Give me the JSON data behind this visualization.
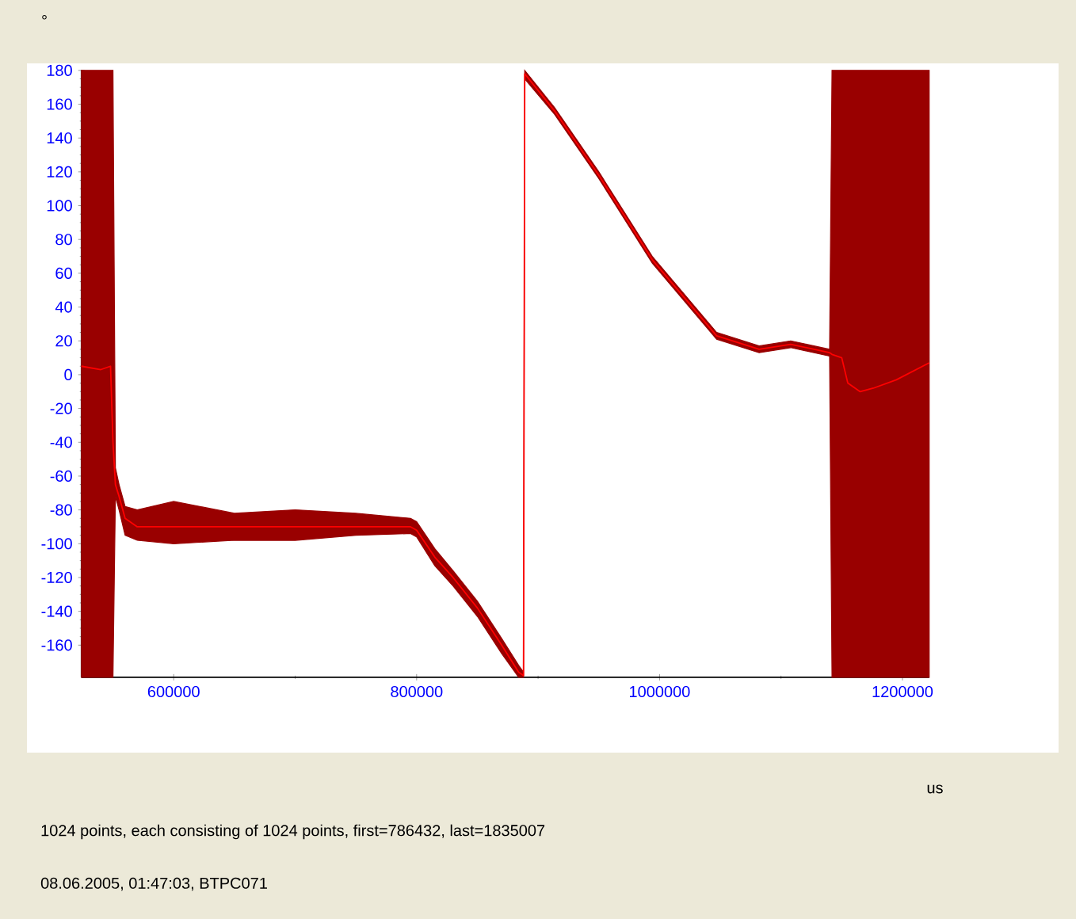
{
  "chart_data": {
    "type": "line",
    "ylabel": "°",
    "annotations": [
      "us",
      "1024 points, each consisting of 1024 points, first=786432, last=1835007",
      "08.06.2005, 01:47:03, BTPC071"
    ],
    "xlim": [
      524000,
      1222000
    ],
    "ylim": [
      -179,
      180
    ],
    "xticks": [
      600000,
      800000,
      1000000,
      1200000
    ],
    "yticks": [
      -160,
      -140,
      -120,
      -100,
      -80,
      -60,
      -40,
      -20,
      0,
      20,
      40,
      60,
      80,
      100,
      120,
      140,
      160,
      180
    ],
    "series": [
      {
        "color": "#ff0000",
        "x": [
          524000,
          540000,
          548000,
          550000,
          552000,
          555000,
          560000,
          570000,
          600000,
          650000,
          700000,
          750000,
          795000,
          800000,
          815000,
          830000,
          850000,
          870000,
          884000,
          888000,
          889000,
          913600,
          950000,
          994000,
          1047000,
          1082000,
          1108000,
          1140000,
          1142000,
          1150000,
          1155000,
          1165000,
          1176000,
          1195000,
          1222000
        ],
        "values": [
          5,
          3,
          5,
          -40,
          -65,
          -72,
          -85,
          -90,
          -90,
          -90,
          -90,
          -90,
          -90,
          -92,
          -108,
          -120,
          -138,
          -160,
          -176,
          -178,
          178,
          156,
          118,
          68,
          23,
          15,
          18,
          13,
          12,
          10,
          -5,
          -10,
          -8,
          -3,
          7
        ],
        "lower": [
          -179,
          -179,
          -179,
          -179,
          -72,
          -80,
          -95,
          -98,
          -100,
          -98,
          -98,
          -95,
          -94,
          -96,
          -113,
          -125,
          -143,
          -165,
          -179,
          -179,
          175,
          154,
          116,
          66,
          21,
          13,
          16,
          11,
          -179,
          -179,
          -179,
          -179,
          -179,
          -179,
          -179
        ],
        "upper": [
          180,
          180,
          180,
          180,
          -55,
          -65,
          -78,
          -80,
          -75,
          -82,
          -80,
          -82,
          -85,
          -87,
          -103,
          -116,
          -134,
          -156,
          -172,
          -176,
          180,
          158,
          120,
          70,
          25,
          17,
          20,
          15,
          180,
          180,
          180,
          180,
          180,
          180,
          180
        ]
      }
    ]
  }
}
